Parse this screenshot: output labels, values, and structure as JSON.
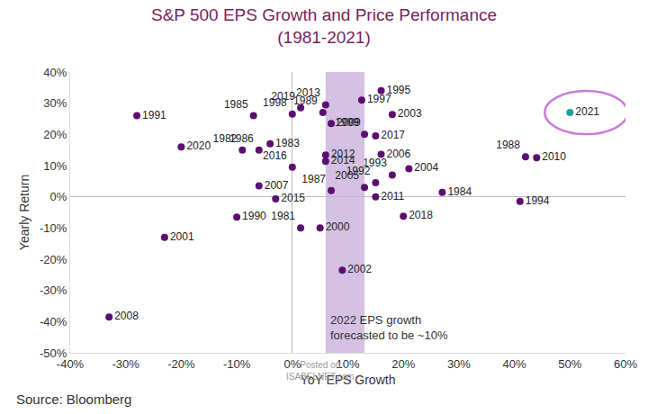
{
  "chart_data": {
    "type": "scatter",
    "title": "S&P 500 EPS Growth and Price Performance",
    "subtitle": "(1981-2021)",
    "x_label": "YoY EPS Growth",
    "y_label": "Yearly Return",
    "source": "Source: Bloomberg",
    "watermark": "Posted on\nISABELNET.com",
    "point_labels": [
      "1991",
      "2020",
      "2008",
      "2001",
      "1990",
      "1985",
      "1983",
      "1982",
      "1986",
      "2007",
      "2015",
      "2016",
      "1981",
      "2000",
      "2002",
      "1998",
      "2019",
      "2013",
      "1989",
      "1997",
      "1995",
      "2003",
      "2009",
      "1999",
      "2017",
      "2012",
      "2014",
      "2006",
      "2004",
      "1993",
      "1992",
      "2005",
      "1987",
      "2011",
      "2018",
      "1984",
      "1988",
      "2010",
      "1994",
      "2021"
    ],
    "x": [
      -28,
      -20,
      -33,
      -23,
      -10,
      -7,
      -4,
      -9,
      -6,
      -6,
      -3,
      0,
      1.5,
      5,
      9,
      0,
      1.5,
      6,
      5.5,
      12.5,
      16,
      18,
      7,
      13,
      15,
      6,
      6,
      16,
      21,
      18,
      15,
      13,
      7,
      15,
      20,
      27,
      42,
      44,
      41,
      50
    ],
    "values": [
      26,
      16,
      -38.5,
      -13,
      -6.5,
      26,
      17,
      15,
      15,
      3.5,
      -0.7,
      9.5,
      -10,
      -10,
      -23.5,
      26.5,
      28.5,
      29.5,
      27,
      31,
      34,
      26.4,
      23.5,
      20,
      19.5,
      13.4,
      11.4,
      13.6,
      9,
      7,
      4.5,
      3,
      2,
      0,
      -6.2,
      1.4,
      12.8,
      12.5,
      -1.5,
      27
    ],
    "color": "#5b1070",
    "colors": [
      "#5b1070",
      "#5b1070",
      "#5b1070",
      "#5b1070",
      "#5b1070",
      "#5b1070",
      "#5b1070",
      "#5b1070",
      "#5b1070",
      "#5b1070",
      "#5b1070",
      "#5b1070",
      "#5b1070",
      "#5b1070",
      "#5b1070",
      "#5b1070",
      "#5b1070",
      "#5b1070",
      "#5b1070",
      "#5b1070",
      "#5b1070",
      "#5b1070",
      "#5b1070",
      "#5b1070",
      "#5b1070",
      "#5b1070",
      "#5b1070",
      "#5b1070",
      "#5b1070",
      "#5b1070",
      "#5b1070",
      "#5b1070",
      "#5b1070",
      "#5b1070",
      "#5b1070",
      "#5b1070",
      "#5b1070",
      "#5b1070",
      "#5b1070",
      "#1aa39a"
    ],
    "highlight": "2021",
    "band": {
      "x": [
        6,
        13
      ],
      "label": "2022 EPS growth\nforecasted to be ~10%",
      "label_x": 6.5,
      "label_y": -42
    },
    "xlim": [
      -40,
      60
    ],
    "xticks": [
      {
        "value": -40,
        "label": "-40%"
      },
      {
        "value": -30,
        "label": "-30%"
      },
      {
        "value": -20,
        "label": "-20%"
      },
      {
        "value": -10,
        "label": "-10%"
      },
      {
        "value": 0,
        "label": "0%"
      },
      {
        "value": 10,
        "label": "10%"
      },
      {
        "value": 20,
        "label": "20%"
      },
      {
        "value": 30,
        "label": "30%"
      },
      {
        "value": 40,
        "label": "40%"
      },
      {
        "value": 50,
        "label": "50%"
      },
      {
        "value": 60,
        "label": "60%"
      }
    ],
    "ylim": [
      -50,
      40
    ],
    "yticks": [
      {
        "value": -50,
        "label": "-50%"
      },
      {
        "value": -40,
        "label": "-40%"
      },
      {
        "value": -30,
        "label": "-30%"
      },
      {
        "value": -20,
        "label": "-20%"
      },
      {
        "value": -10,
        "label": "-10%"
      },
      {
        "value": 0,
        "label": "0%"
      },
      {
        "value": 10,
        "label": "10%"
      },
      {
        "value": 20,
        "label": "20%"
      },
      {
        "value": 30,
        "label": "30%"
      },
      {
        "value": 40,
        "label": "40%"
      }
    ],
    "grid": false,
    "data_labels": false
  }
}
